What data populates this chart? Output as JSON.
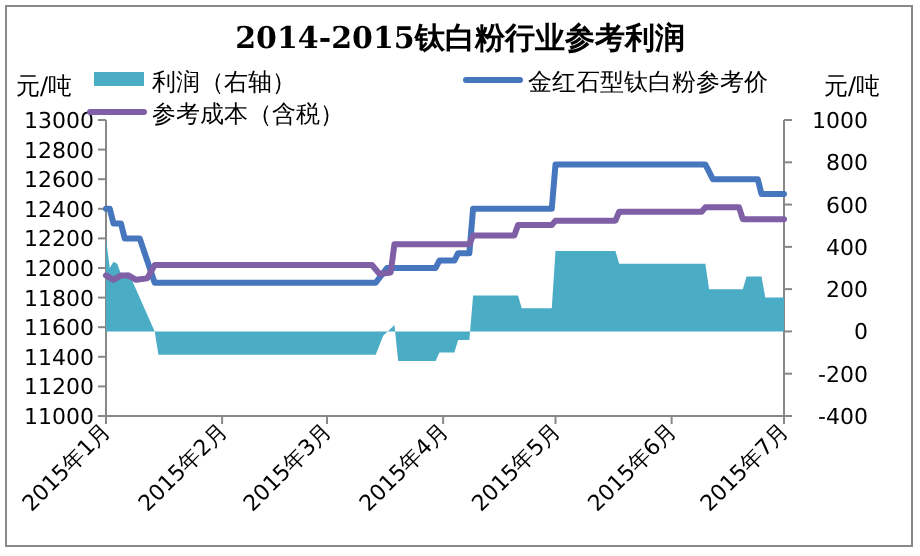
{
  "chart_data": {
    "type": "line",
    "title": "2014-2015钛白粉行业参考利润",
    "ylabel": "元/吨",
    "y2label": "元/吨",
    "legend": "top",
    "xlim": [
      "2015-01-01",
      "2015-07-01"
    ],
    "xticks": [
      {
        "value": "2015-01-01",
        "label": "2015年1月"
      },
      {
        "value": "2015-02-01",
        "label": "2015年2月"
      },
      {
        "value": "2015-03-01",
        "label": "2015年3月"
      },
      {
        "value": "2015-04-01",
        "label": "2015年4月"
      },
      {
        "value": "2015-05-01",
        "label": "2015年5月"
      },
      {
        "value": "2015-06-01",
        "label": "2015年6月"
      },
      {
        "value": "2015-07-01",
        "label": "2015年7月"
      }
    ],
    "ylim": [
      11000,
      13000
    ],
    "yticks": [
      11000,
      11200,
      11400,
      11600,
      11800,
      12000,
      12200,
      12400,
      12600,
      12800,
      13000
    ],
    "y2lim": [
      -400,
      1000
    ],
    "y2ticks": [
      -400,
      -200,
      0,
      200,
      400,
      600,
      800,
      1000
    ],
    "series": [
      {
        "name": "利润（右轴）",
        "type": "area",
        "axis": "y2",
        "color": "#4bacc6",
        "x": [
          "2015-01-01",
          "2015-01-02",
          "2015-01-03",
          "2015-01-04",
          "2015-01-05",
          "2015-01-07",
          "2015-01-08",
          "2015-01-14",
          "2015-01-15",
          "2015-03-14",
          "2015-03-16",
          "2015-03-19",
          "2015-03-20",
          "2015-03-30",
          "2015-03-31",
          "2015-04-04",
          "2015-04-05",
          "2015-04-08",
          "2015-04-09",
          "2015-04-21",
          "2015-04-22",
          "2015-04-30",
          "2015-05-01",
          "2015-05-17",
          "2015-05-18",
          "2015-06-10",
          "2015-06-11",
          "2015-06-20",
          "2015-06-21",
          "2015-06-25",
          "2015-06-26",
          "2015-07-01"
        ],
        "values": [
          440,
          300,
          330,
          320,
          270,
          280,
          240,
          0,
          -110,
          -110,
          -20,
          30,
          -140,
          -140,
          -100,
          -100,
          -40,
          -40,
          170,
          170,
          110,
          110,
          380,
          380,
          320,
          320,
          200,
          200,
          260,
          260,
          160,
          160
        ]
      },
      {
        "name": "金红石型钛白粉参考价",
        "type": "line",
        "color": "#4677be",
        "x": [
          "2015-01-01",
          "2015-01-02",
          "2015-01-03",
          "2015-01-05",
          "2015-01-06",
          "2015-01-10",
          "2015-01-14",
          "2015-03-14",
          "2015-03-17",
          "2015-03-30",
          "2015-03-31",
          "2015-04-04",
          "2015-04-05",
          "2015-04-08",
          "2015-04-09",
          "2015-04-30",
          "2015-05-01",
          "2015-06-10",
          "2015-06-12",
          "2015-06-24",
          "2015-06-25",
          "2015-07-01"
        ],
        "values": [
          12400,
          12400,
          12300,
          12300,
          12200,
          12200,
          11900,
          11900,
          12000,
          12000,
          12050,
          12050,
          12100,
          12100,
          12400,
          12400,
          12700,
          12700,
          12600,
          12600,
          12500,
          12500
        ]
      },
      {
        "name": "参考成本（含税）",
        "type": "line",
        "color": "#7f5fa6",
        "x": [
          "2015-01-01",
          "2015-01-03",
          "2015-01-05",
          "2015-01-07",
          "2015-01-09",
          "2015-01-12",
          "2015-01-14",
          "2015-03-13",
          "2015-03-15",
          "2015-03-18",
          "2015-03-19",
          "2015-04-08",
          "2015-04-09",
          "2015-04-20",
          "2015-04-21",
          "2015-04-30",
          "2015-05-01",
          "2015-05-17",
          "2015-05-18",
          "2015-06-09",
          "2015-06-10",
          "2015-06-19",
          "2015-06-20",
          "2015-07-01"
        ],
        "values": [
          11950,
          11920,
          11950,
          11950,
          11920,
          11930,
          12020,
          12020,
          11960,
          11970,
          12160,
          12160,
          12220,
          12220,
          12290,
          12290,
          12320,
          12320,
          12380,
          12380,
          12410,
          12410,
          12330,
          12330
        ]
      }
    ]
  }
}
